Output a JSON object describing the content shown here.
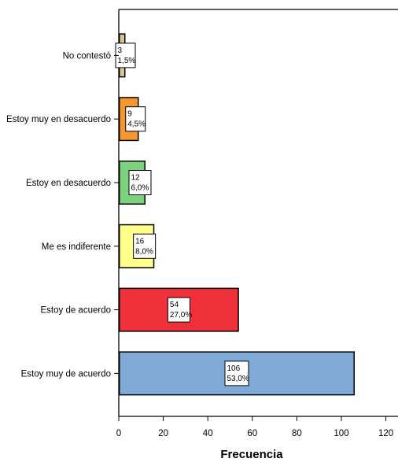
{
  "chart_data": {
    "type": "bar",
    "orientation": "horizontal",
    "categories": [
      "No contestó",
      "Estoy muy en desacuerdo",
      "Estoy en desacuerdo",
      "Me es indiferente",
      "Estoy de acuerdo",
      "Estoy muy de acuerdo"
    ],
    "values": [
      3,
      9,
      12,
      16,
      54,
      106
    ],
    "percent_labels": [
      "1,5%",
      "4,5%",
      "6,0%",
      "8,0%",
      "27,0%",
      "53,0%"
    ],
    "colors": [
      "#d6c694",
      "#f5962e",
      "#7dd37d",
      "#ffff8c",
      "#f0303a",
      "#7faad6"
    ],
    "xlabel": "Frecuencia",
    "ylabel": "",
    "xlim": [
      0,
      125
    ],
    "xticks": [
      0,
      20,
      40,
      60,
      80,
      100,
      120
    ],
    "grid": false,
    "legend": "none"
  }
}
